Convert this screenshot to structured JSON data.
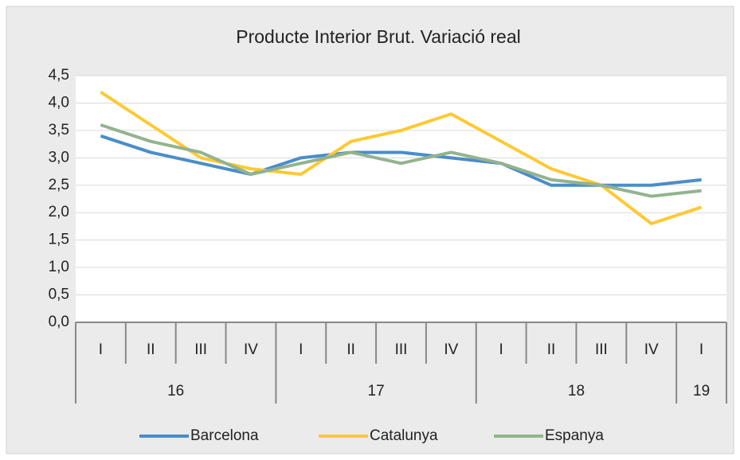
{
  "chart_data": {
    "type": "line",
    "title": "Producte Interior Brut. Variació real",
    "category_groups": [
      {
        "label": "16",
        "categories": [
          "I",
          "II",
          "III",
          "IV"
        ]
      },
      {
        "label": "17",
        "categories": [
          "I",
          "II",
          "III",
          "IV"
        ]
      },
      {
        "label": "18",
        "categories": [
          "I",
          "II",
          "III",
          "IV"
        ]
      },
      {
        "label": "19",
        "categories": [
          "I"
        ]
      }
    ],
    "series": [
      {
        "name": "Barcelona",
        "color": "#4a8dc9",
        "values": [
          3.4,
          3.1,
          2.9,
          2.7,
          3.0,
          3.1,
          3.1,
          3.0,
          2.9,
          2.5,
          2.5,
          2.5,
          2.6
        ]
      },
      {
        "name": "Catalunya",
        "color": "#ffc933",
        "values": [
          4.2,
          3.6,
          3.0,
          2.8,
          2.7,
          3.3,
          3.5,
          3.8,
          3.3,
          2.8,
          2.5,
          1.8,
          2.1
        ]
      },
      {
        "name": "Espanya",
        "color": "#93b38e",
        "values": [
          3.6,
          3.3,
          3.1,
          2.7,
          2.9,
          3.1,
          2.9,
          3.1,
          2.9,
          2.6,
          2.5,
          2.3,
          2.4
        ]
      }
    ],
    "ylim": [
      0,
      4.5
    ],
    "yticks": [
      {
        "value": 0,
        "label": "0,0"
      },
      {
        "value": 0.5,
        "label": "0,5"
      },
      {
        "value": 1,
        "label": "1,0"
      },
      {
        "value": 1.5,
        "label": "1,5"
      },
      {
        "value": 2,
        "label": "2,0"
      },
      {
        "value": 2.5,
        "label": "2,5"
      },
      {
        "value": 3,
        "label": "3,0"
      },
      {
        "value": 3.5,
        "label": "3,5"
      },
      {
        "value": 4,
        "label": "4,0"
      },
      {
        "value": 4.5,
        "label": "4,5"
      }
    ],
    "grid": true,
    "legend": "bottom"
  }
}
